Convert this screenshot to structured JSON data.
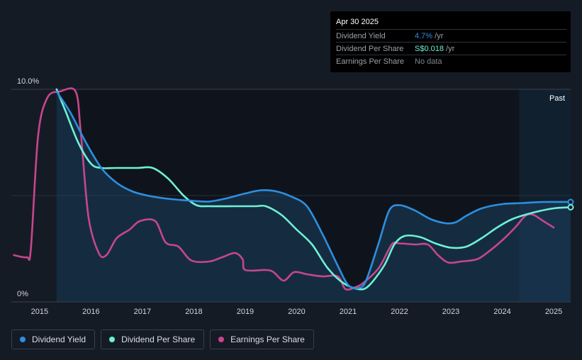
{
  "tooltip": {
    "date": "Apr 30 2025",
    "rows": [
      {
        "label": "Dividend Yield",
        "value": "4.7%",
        "unit": " /yr",
        "color": "#2d8fe0"
      },
      {
        "label": "Dividend Per Share",
        "value": "S$0.018",
        "unit": " /yr",
        "color": "#6ff0d6"
      },
      {
        "label": "Earnings Per Share",
        "value": "No data",
        "unit": "",
        "color": "#7f858d"
      }
    ]
  },
  "past_label": "Past",
  "legend": [
    {
      "label": "Dividend Yield",
      "color": "#2d8fe0"
    },
    {
      "label": "Dividend Per Share",
      "color": "#6ff0d6"
    },
    {
      "label": "Earnings Per Share",
      "color": "#c7468c"
    }
  ],
  "chart_data": {
    "type": "line",
    "xlabel": "",
    "ylabel": "",
    "ylim": [
      0,
      10
    ],
    "xlim": [
      2014.45,
      2025.33
    ],
    "y_tick_labels": [
      "0%",
      "10.0%"
    ],
    "x_ticks": [
      2015,
      2016,
      2017,
      2018,
      2019,
      2020,
      2021,
      2022,
      2023,
      2024,
      2025
    ],
    "x_tick_labels": [
      "2015",
      "2016",
      "2017",
      "2018",
      "2019",
      "2020",
      "2021",
      "2022",
      "2023",
      "2024",
      "2025"
    ],
    "shaded_start": 2015.33,
    "past_start": 2024.33,
    "series": [
      {
        "name": "Dividend Yield",
        "color": "#2d8fe0",
        "points": [
          [
            2015.33,
            9.9
          ],
          [
            2015.6,
            8.9
          ],
          [
            2015.9,
            7.5
          ],
          [
            2016.2,
            6.3
          ],
          [
            2016.5,
            5.6
          ],
          [
            2016.8,
            5.2
          ],
          [
            2017.1,
            5.0
          ],
          [
            2017.5,
            4.85
          ],
          [
            2018.0,
            4.75
          ],
          [
            2018.3,
            4.72
          ],
          [
            2018.6,
            4.85
          ],
          [
            2019.0,
            5.1
          ],
          [
            2019.3,
            5.25
          ],
          [
            2019.6,
            5.2
          ],
          [
            2019.9,
            4.95
          ],
          [
            2020.2,
            4.5
          ],
          [
            2020.5,
            3.2
          ],
          [
            2020.8,
            1.7
          ],
          [
            2021.0,
            0.8
          ],
          [
            2021.2,
            0.65
          ],
          [
            2021.35,
            1.0
          ],
          [
            2021.6,
            2.8
          ],
          [
            2021.8,
            4.3
          ],
          [
            2022.0,
            4.55
          ],
          [
            2022.3,
            4.3
          ],
          [
            2022.6,
            3.9
          ],
          [
            2022.9,
            3.7
          ],
          [
            2023.1,
            3.75
          ],
          [
            2023.3,
            4.05
          ],
          [
            2023.6,
            4.4
          ],
          [
            2024.0,
            4.6
          ],
          [
            2024.4,
            4.65
          ],
          [
            2024.8,
            4.7
          ],
          [
            2025.33,
            4.7
          ]
        ]
      },
      {
        "name": "Dividend Per Share",
        "color": "#6ff0d6",
        "points": [
          [
            2015.33,
            10.0
          ],
          [
            2015.5,
            9.0
          ],
          [
            2015.75,
            7.5
          ],
          [
            2016.0,
            6.5
          ],
          [
            2016.2,
            6.3
          ],
          [
            2016.5,
            6.3
          ],
          [
            2016.9,
            6.3
          ],
          [
            2017.2,
            6.3
          ],
          [
            2017.5,
            5.8
          ],
          [
            2017.8,
            5.0
          ],
          [
            2018.05,
            4.55
          ],
          [
            2018.3,
            4.5
          ],
          [
            2018.8,
            4.5
          ],
          [
            2019.2,
            4.5
          ],
          [
            2019.4,
            4.5
          ],
          [
            2019.7,
            4.1
          ],
          [
            2020.0,
            3.4
          ],
          [
            2020.3,
            2.7
          ],
          [
            2020.6,
            1.6
          ],
          [
            2020.9,
            0.9
          ],
          [
            2021.2,
            0.6
          ],
          [
            2021.4,
            0.75
          ],
          [
            2021.7,
            1.7
          ],
          [
            2021.9,
            2.7
          ],
          [
            2022.1,
            3.1
          ],
          [
            2022.4,
            3.05
          ],
          [
            2022.7,
            2.75
          ],
          [
            2023.0,
            2.55
          ],
          [
            2023.3,
            2.6
          ],
          [
            2023.6,
            3.0
          ],
          [
            2023.9,
            3.5
          ],
          [
            2024.2,
            3.9
          ],
          [
            2024.6,
            4.2
          ],
          [
            2025.0,
            4.4
          ],
          [
            2025.33,
            4.45
          ]
        ]
      },
      {
        "name": "Earnings Per Share",
        "color": "#c7468c",
        "points": [
          [
            2014.5,
            2.2
          ],
          [
            2014.75,
            2.1
          ],
          [
            2014.83,
            2.5
          ],
          [
            2014.97,
            7.8
          ],
          [
            2015.15,
            9.6
          ],
          [
            2015.4,
            9.9
          ],
          [
            2015.7,
            9.9
          ],
          [
            2015.8,
            8.0
          ],
          [
            2015.95,
            4.0
          ],
          [
            2016.15,
            2.3
          ],
          [
            2016.3,
            2.2
          ],
          [
            2016.5,
            3.0
          ],
          [
            2016.75,
            3.4
          ],
          [
            2016.95,
            3.8
          ],
          [
            2017.25,
            3.8
          ],
          [
            2017.45,
            2.8
          ],
          [
            2017.7,
            2.6
          ],
          [
            2017.95,
            1.95
          ],
          [
            2018.3,
            1.9
          ],
          [
            2018.55,
            2.1
          ],
          [
            2018.8,
            2.3
          ],
          [
            2018.95,
            2.0
          ],
          [
            2019.0,
            1.5
          ],
          [
            2019.4,
            1.5
          ],
          [
            2019.55,
            1.4
          ],
          [
            2019.75,
            1.0
          ],
          [
            2019.95,
            1.4
          ],
          [
            2020.2,
            1.3
          ],
          [
            2020.5,
            1.2
          ],
          [
            2020.8,
            1.2
          ],
          [
            2020.95,
            0.6
          ],
          [
            2021.15,
            0.7
          ],
          [
            2021.3,
            0.9
          ],
          [
            2021.6,
            1.6
          ],
          [
            2021.85,
            2.7
          ],
          [
            2022.0,
            2.75
          ],
          [
            2022.3,
            2.7
          ],
          [
            2022.55,
            2.7
          ],
          [
            2022.75,
            2.2
          ],
          [
            2022.95,
            1.85
          ],
          [
            2023.2,
            1.9
          ],
          [
            2023.5,
            2.0
          ],
          [
            2023.7,
            2.3
          ],
          [
            2024.0,
            2.9
          ],
          [
            2024.25,
            3.5
          ],
          [
            2024.45,
            4.05
          ],
          [
            2024.6,
            4.1
          ],
          [
            2024.8,
            3.8
          ],
          [
            2025.0,
            3.5
          ]
        ]
      }
    ]
  }
}
